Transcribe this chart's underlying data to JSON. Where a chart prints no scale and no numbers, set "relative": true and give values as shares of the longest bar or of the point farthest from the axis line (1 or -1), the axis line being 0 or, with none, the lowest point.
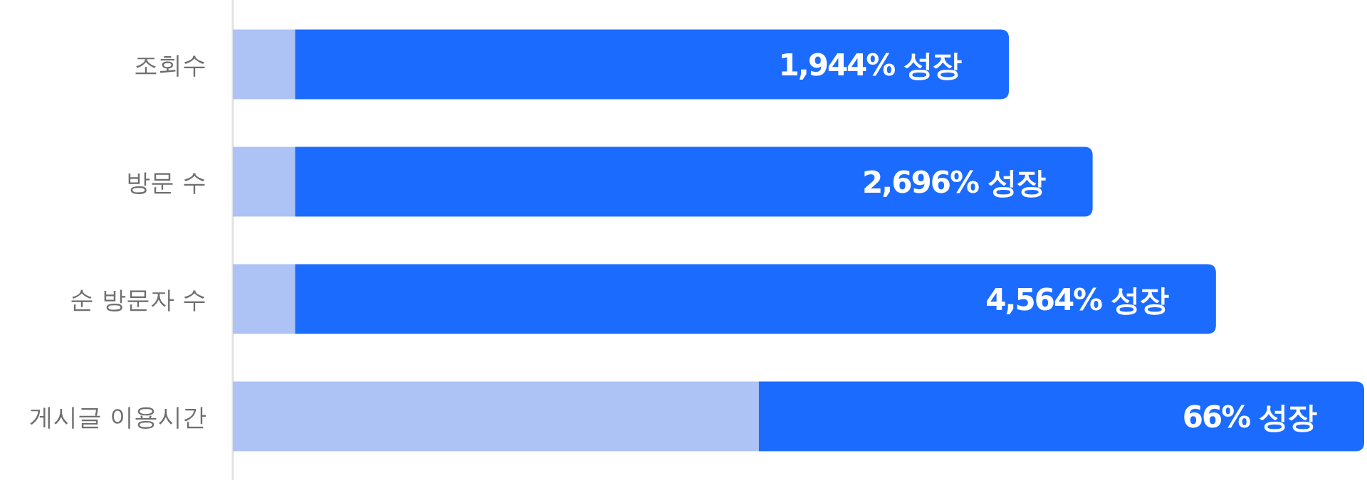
{
  "chart_data": {
    "type": "bar",
    "orientation": "horizontal",
    "stacked": true,
    "relative": true,
    "categories": [
      "조회수",
      "방문 수",
      "순 방문자 수",
      "게시글 이용시간"
    ],
    "series": [
      {
        "color": "#adc3f5",
        "values": [
          0.055,
          0.055,
          0.055,
          0.465
        ]
      },
      {
        "color": "#1c6bff",
        "values": [
          0.631,
          0.705,
          0.814,
          0.535
        ]
      }
    ],
    "annotations": [
      "1,944% 성장",
      "2,696% 성장",
      "4,564% 성장",
      "66% 성장"
    ]
  }
}
